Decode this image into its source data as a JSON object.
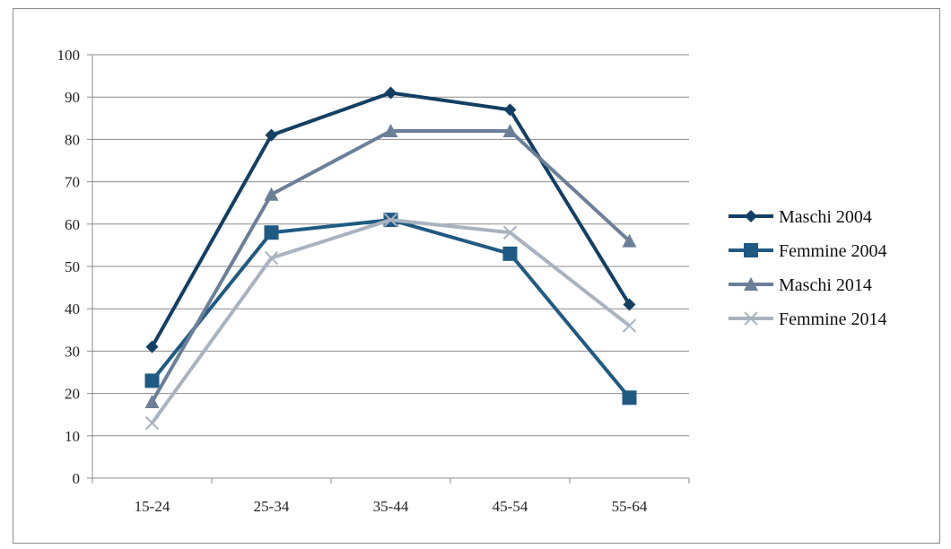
{
  "chart_data": {
    "type": "line",
    "title": "",
    "xlabel": "",
    "ylabel": "",
    "categories": [
      "15-24",
      "25-34",
      "35-44",
      "45-54",
      "55-64"
    ],
    "ylim": [
      0,
      100
    ],
    "yticks": [
      0,
      10,
      20,
      30,
      40,
      50,
      60,
      70,
      80,
      90,
      100
    ],
    "grid": true,
    "legend_position": "right",
    "series": [
      {
        "name": "Maschi 2004",
        "values": [
          31,
          81,
          91,
          87,
          41
        ],
        "color": "#123f63",
        "marker": "diamond"
      },
      {
        "name": "Femmine 2004",
        "values": [
          23,
          58,
          61,
          53,
          19
        ],
        "color": "#1f5a82",
        "marker": "square"
      },
      {
        "name": "Maschi 2014",
        "values": [
          18,
          67,
          82,
          82,
          56
        ],
        "color": "#6b7f98",
        "marker": "triangle"
      },
      {
        "name": "Femmine 2014",
        "values": [
          13,
          52,
          61,
          58,
          36
        ],
        "color": "#a9b3bf",
        "marker": "x"
      }
    ]
  }
}
